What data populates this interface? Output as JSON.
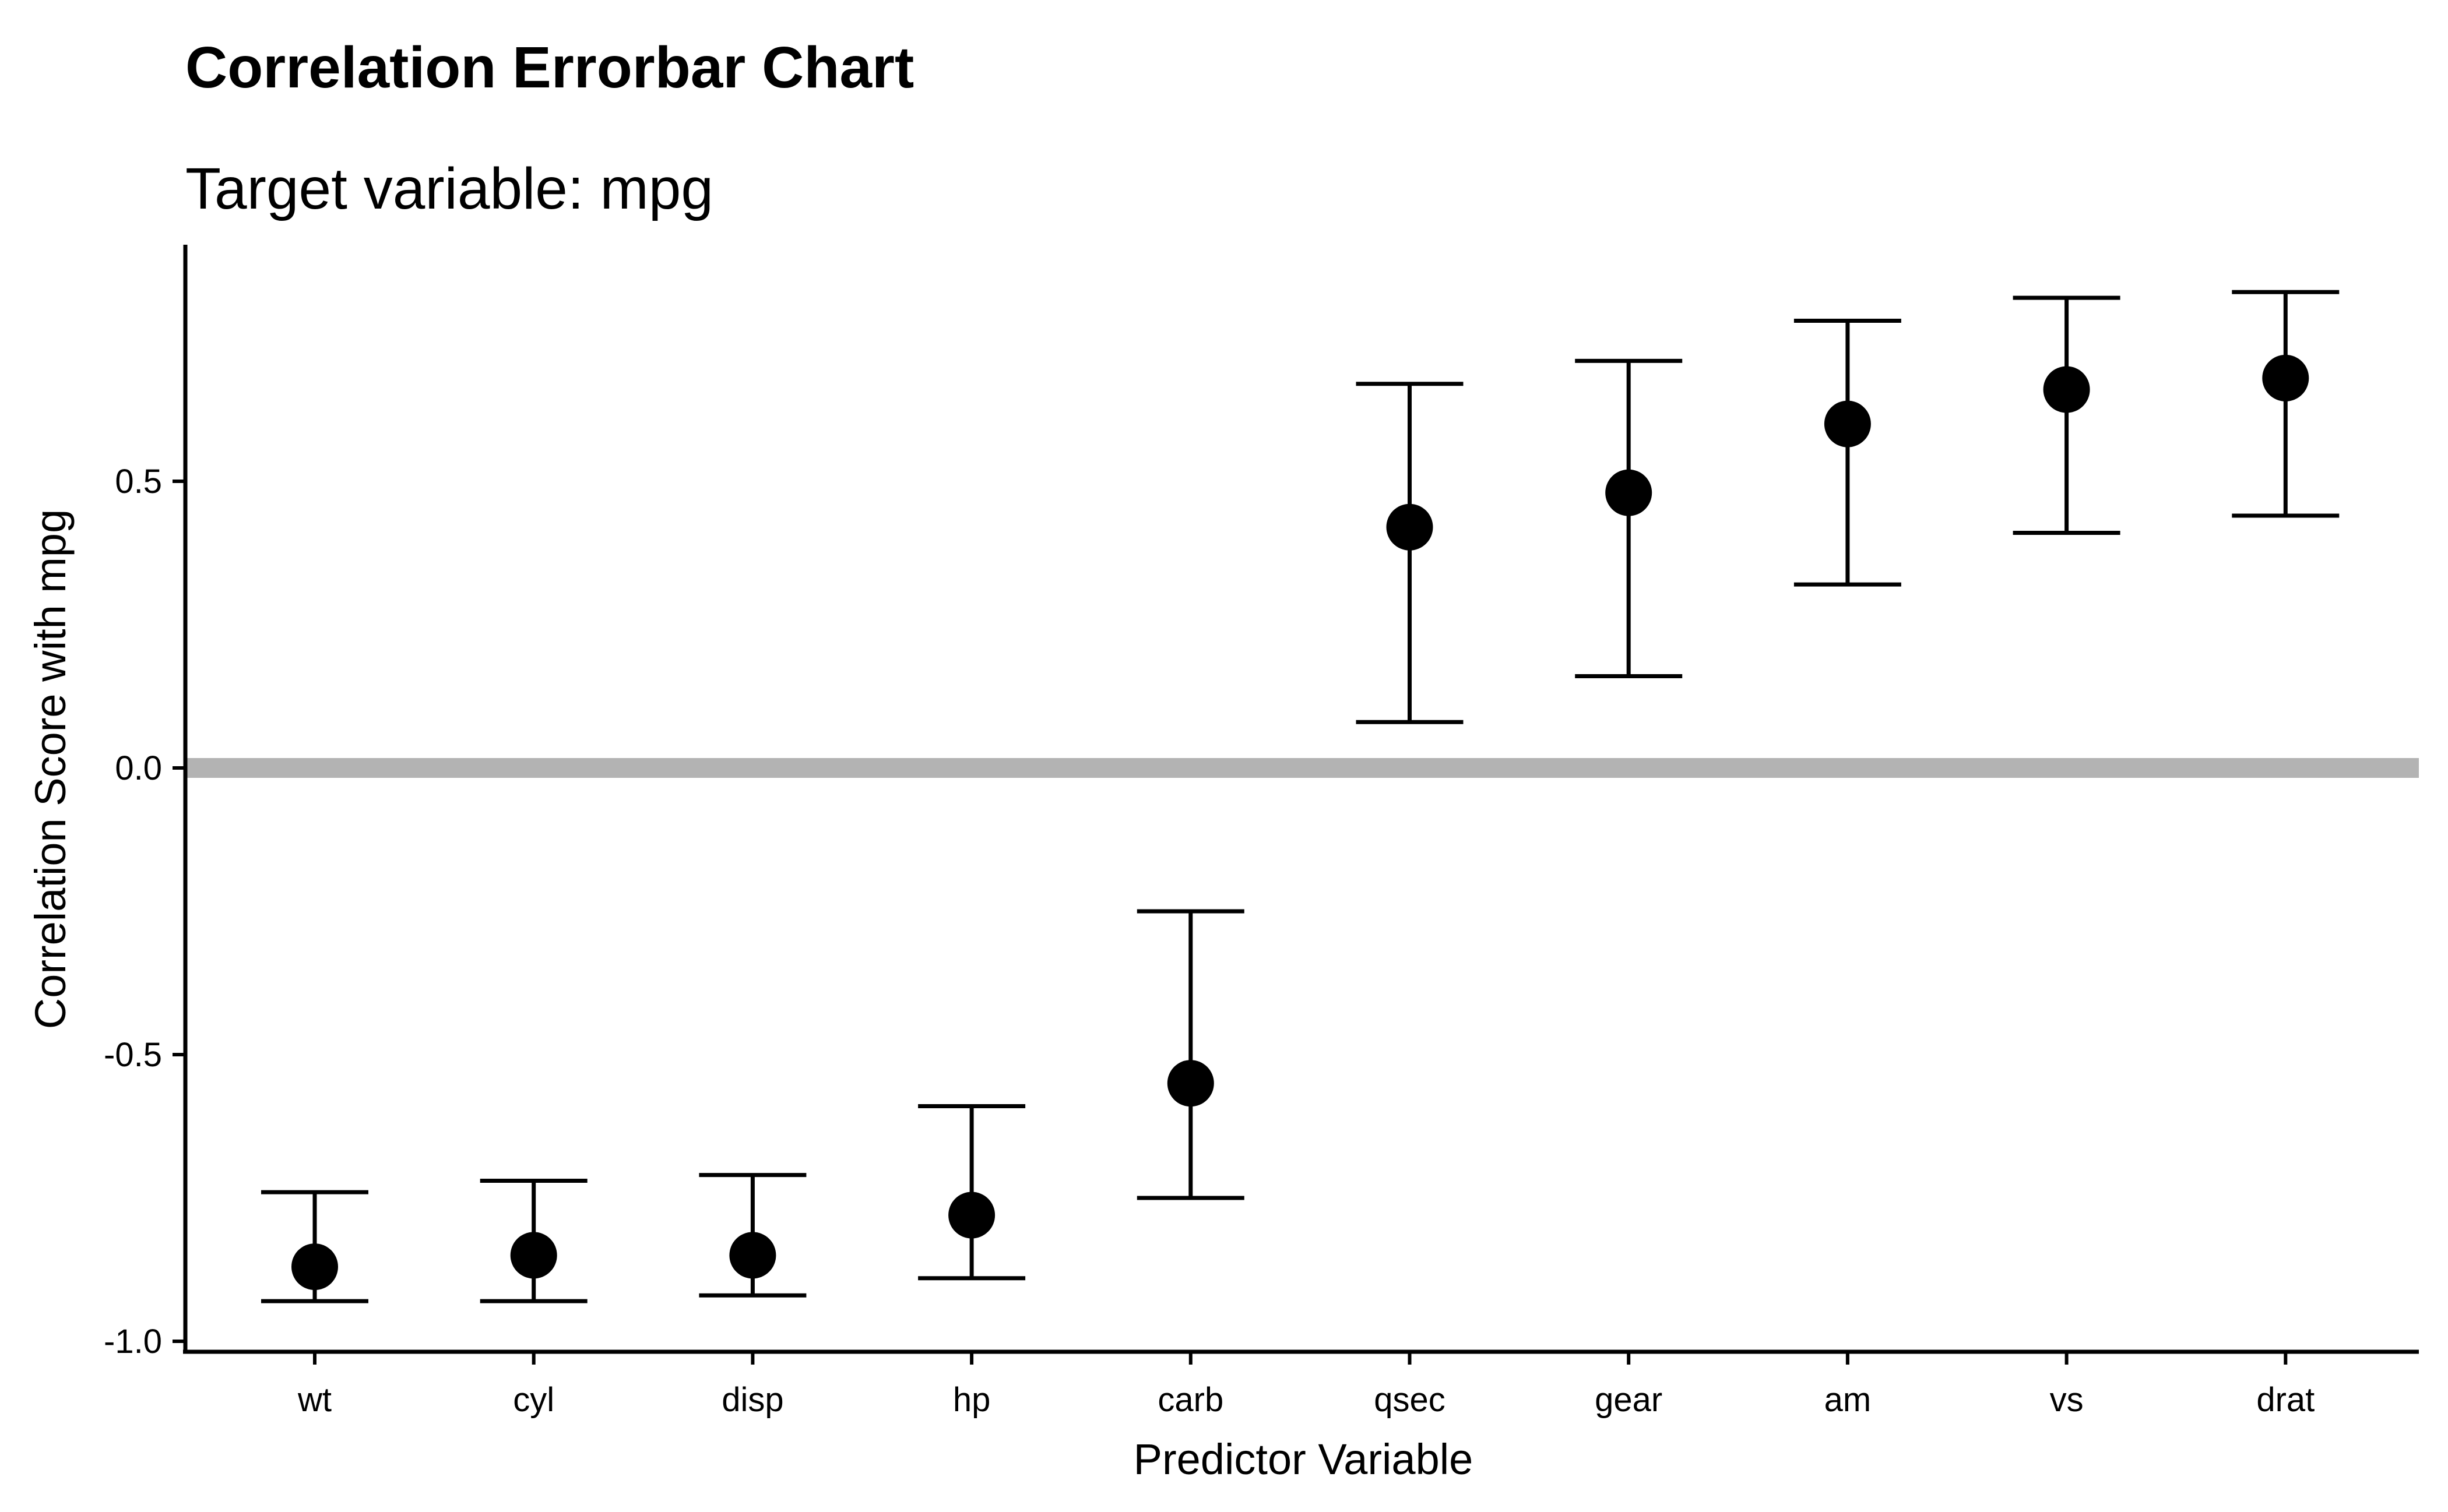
{
  "chart_data": {
    "type": "errorbar",
    "title": "Correlation Errorbar Chart",
    "subtitle": "Target variable: mpg",
    "xlabel": "Predictor Variable",
    "ylabel": "Correlation Score with mpg",
    "ylim": [
      -1.0,
      0.9
    ],
    "yticks": [
      -1.0,
      -0.5,
      0.0,
      0.5
    ],
    "ytick_labels": [
      "-1.0",
      "-0.5",
      "0.0",
      "0.5"
    ],
    "reference_line": 0.0,
    "grid": false,
    "categories": [
      "wt",
      "cyl",
      "disp",
      "hp",
      "carb",
      "qsec",
      "gear",
      "am",
      "vs",
      "drat"
    ],
    "values": [
      -0.87,
      -0.85,
      -0.85,
      -0.78,
      -0.55,
      0.42,
      0.48,
      0.6,
      0.66,
      0.68
    ],
    "lower": [
      -0.93,
      -0.93,
      -0.92,
      -0.89,
      -0.75,
      0.08,
      0.16,
      0.32,
      0.41,
      0.44
    ],
    "upper": [
      -0.74,
      -0.72,
      -0.71,
      -0.59,
      -0.25,
      0.67,
      0.71,
      0.78,
      0.82,
      0.83
    ],
    "colors": {
      "point": "#000000",
      "errorbar": "#000000",
      "reference_line": "#b3b3b3",
      "axis": "#000000"
    }
  }
}
